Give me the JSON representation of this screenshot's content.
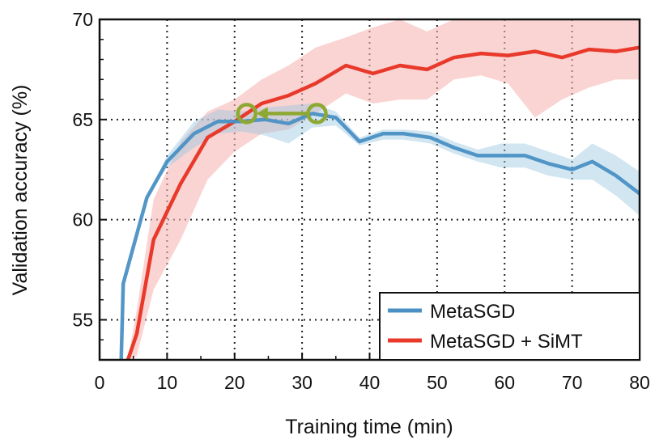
{
  "chart_data": {
    "type": "line",
    "xlabel": "Training time (min)",
    "ylabel": "Validation accuracy (%)",
    "xlim": [
      0,
      80
    ],
    "ylim": [
      53,
      70
    ],
    "x_ticks": [
      "0",
      "10",
      "20",
      "30",
      "40",
      "50",
      "60",
      "70",
      "80"
    ],
    "y_ticks": [
      "55",
      "60",
      "65",
      "70"
    ],
    "grid": "dotted, at x = 10,20,...,70 and y = 55,60,65",
    "legend_position": "bottom-right",
    "colors": {
      "metasgd": "#4a90c4",
      "simt": "#e8392b",
      "simt_band": "#f7b7b4",
      "metasgd_band": "#9cc7e0",
      "arrow": "#8fa832"
    },
    "series": [
      {
        "name": "MetaSGD",
        "x": [
          3.2,
          3.5,
          7,
          10,
          14,
          17.5,
          21,
          24.5,
          28,
          31.5,
          35,
          38.5,
          42,
          45,
          49,
          52.5,
          56,
          59.5,
          63,
          66.5,
          70,
          73,
          76.5,
          80
        ],
        "y": [
          53,
          56.8,
          61.1,
          62.9,
          64.3,
          64.9,
          64.9,
          65.0,
          64.8,
          65.3,
          65.1,
          63.9,
          64.3,
          64.3,
          64.1,
          63.6,
          63.2,
          63.2,
          63.2,
          62.8,
          62.5,
          62.9,
          62.2,
          61.3
        ],
        "lower": [
          53,
          56.8,
          61.1,
          62.6,
          63.6,
          64.3,
          64.4,
          64.2,
          63.8,
          64.6,
          64.7,
          63.7,
          64.0,
          64.0,
          63.8,
          63.3,
          62.9,
          62.6,
          62.6,
          62.2,
          62.0,
          62.0,
          61.2,
          60.2
        ],
        "upper": [
          53,
          56.8,
          61.1,
          63.2,
          64.9,
          65.5,
          65.4,
          65.6,
          65.7,
          65.8,
          65.4,
          64.1,
          64.5,
          64.5,
          64.4,
          63.9,
          63.5,
          63.8,
          63.8,
          63.4,
          63.0,
          63.8,
          63.2,
          62.4
        ]
      },
      {
        "name": "MetaSGD + SiMT",
        "x": [
          4.2,
          5.5,
          8,
          12,
          16,
          20,
          24,
          28,
          32,
          36.5,
          40.5,
          44.5,
          48.5,
          52.5,
          56.5,
          60.5,
          64.5,
          68.5,
          72.5,
          76.5,
          80
        ],
        "y": [
          53,
          54.3,
          59.0,
          61.8,
          64.1,
          64.9,
          65.8,
          66.2,
          66.8,
          67.7,
          67.3,
          67.7,
          67.5,
          68.1,
          68.3,
          68.2,
          68.4,
          68.1,
          68.5,
          68.4,
          68.6
        ],
        "lower": [
          53,
          53.2,
          56.5,
          59.0,
          62.0,
          63.4,
          64.3,
          64.5,
          65.3,
          66.3,
          65.8,
          66.0,
          66.0,
          67.0,
          67.2,
          66.8,
          65.1,
          66.0,
          66.6,
          67.0,
          67.0
        ],
        "upper": [
          53,
          55.5,
          61.0,
          63.9,
          65.4,
          66.0,
          67.0,
          67.7,
          68.6,
          69.1,
          69.6,
          70.0,
          69.4,
          70.0,
          70.0,
          70.0,
          70.0,
          70.0,
          70.0,
          70.0,
          70.0
        ]
      }
    ],
    "annotation": {
      "text": "",
      "description": "speedup arrow between two circles",
      "from": [
        31,
        65.3
      ],
      "to": [
        21.8,
        65.3
      ]
    }
  }
}
